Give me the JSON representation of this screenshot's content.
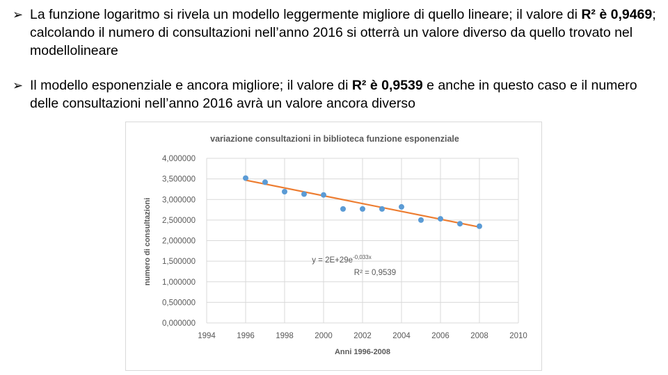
{
  "bullets": [
    {
      "pre": "La funzione logaritmo si rivela un modello leggermente migliore di quello lineare; il valore di ",
      "bold": "R² è 0,9469",
      "post": "; calcolando il numero di consultazioni nell’anno 2016 si otterrà un  valore diverso da quello trovato nel modellolineare"
    },
    {
      "pre": "Il modello esponenziale e ancora migliore; il valore di ",
      "bold": "R² è 0,9539",
      "post": " e anche in questo caso e il numero delle consultazioni nell’anno 2016 avrà un valore ancora diverso"
    }
  ],
  "chart_data": {
    "type": "scatter",
    "title": "variazione consultazioni in biblioteca funzione esponenziale",
    "xlabel": "Anni 1996-2008",
    "ylabel": "numero di consultazioni",
    "xlim": [
      1994,
      2010
    ],
    "ylim": [
      0,
      4
    ],
    "xticks": [
      "1994",
      "1996",
      "1998",
      "2000",
      "2002",
      "2004",
      "2006",
      "2008",
      "2010"
    ],
    "yticks": [
      "0,000000",
      "0,500000",
      "1,000000",
      "1,500000",
      "2,000000",
      "2,500000",
      "3,000000",
      "3,500000",
      "4,000000"
    ],
    "grid": true,
    "x": [
      1996,
      1997,
      1998,
      1999,
      2000,
      2001,
      2002,
      2003,
      2004,
      2005,
      2006,
      2007,
      2008
    ],
    "y": [
      3.52,
      3.42,
      3.19,
      3.13,
      3.11,
      2.77,
      2.77,
      2.77,
      2.82,
      2.5,
      2.53,
      2.41,
      2.35
    ],
    "trendline": {
      "type": "exponential",
      "from": [
        1996,
        3.47
      ],
      "to": [
        2008,
        2.33
      ],
      "equation": "y = 2E+29e",
      "exponent": "-0,033x",
      "r2": "R² = 0,9539"
    },
    "colors": {
      "points": "#5b9bd5",
      "trend": "#ed7d31"
    }
  }
}
